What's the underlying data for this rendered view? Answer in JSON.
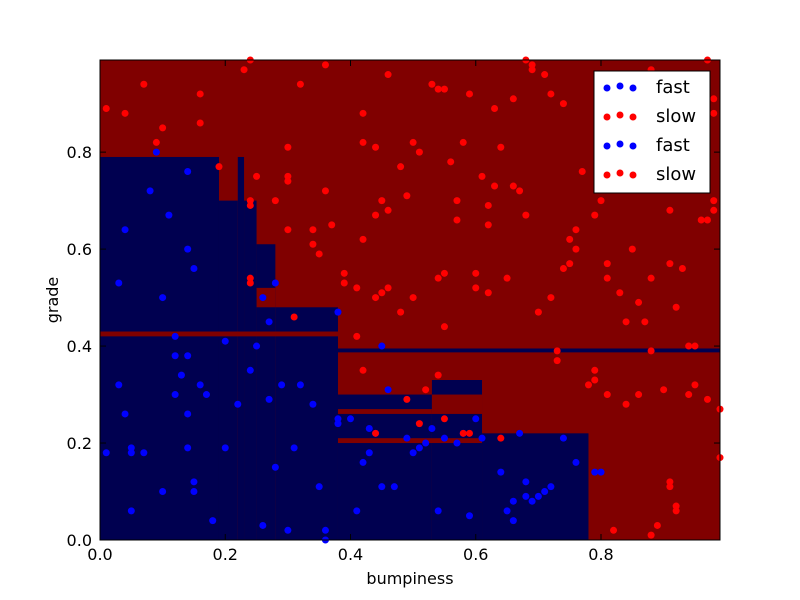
{
  "chart_data": {
    "type": "scatter",
    "title": "",
    "xlabel": "bumpiness",
    "ylabel": "grade",
    "xlim": [
      0.0,
      0.99
    ],
    "ylim": [
      0.0,
      0.99
    ],
    "x_ticks": [
      0.0,
      0.2,
      0.4,
      0.6,
      0.8
    ],
    "x_tick_labels": [
      "0.0",
      "0.2",
      "0.4",
      "0.6",
      "0.8"
    ],
    "y_ticks": [
      0.0,
      0.2,
      0.4,
      0.6,
      0.8
    ],
    "y_tick_labels": [
      "0.0",
      "0.2",
      "0.4",
      "0.6",
      "0.8"
    ],
    "grid": false,
    "legend_position": "top-right",
    "colors": {
      "fast_region": "#000050",
      "slow_region": "#800000",
      "fast_points": "#0000ff",
      "slow_points": "#ff0000",
      "frame": "#000000"
    },
    "legend": [
      {
        "label": "fast",
        "color": "#0000ff"
      },
      {
        "label": "slow",
        "color": "#ff0000"
      },
      {
        "label": "fast",
        "color": "#0000ff"
      },
      {
        "label": "slow",
        "color": "#ff0000"
      }
    ],
    "decision_regions": {
      "background_class": "slow",
      "fast_rectangles": [
        {
          "x0": 0.0,
          "x1": 0.19,
          "y0": 0.0,
          "y1": 0.79
        },
        {
          "x0": 0.19,
          "x1": 0.22,
          "y0": 0.0,
          "y1": 0.7
        },
        {
          "x0": 0.22,
          "x1": 0.23,
          "y0": 0.0,
          "y1": 0.79
        },
        {
          "x0": 0.23,
          "x1": 0.25,
          "y0": 0.0,
          "y1": 0.7
        },
        {
          "x0": 0.25,
          "x1": 0.28,
          "y0": 0.0,
          "y1": 0.61
        },
        {
          "x0": 0.28,
          "x1": 0.38,
          "y0": 0.0,
          "y1": 0.48
        },
        {
          "x0": 0.38,
          "x1": 0.99,
          "y0": 0.387,
          "y1": 0.395
        },
        {
          "x0": 0.38,
          "x1": 0.53,
          "y0": 0.0,
          "y1": 0.3
        },
        {
          "x0": 0.53,
          "x1": 0.61,
          "y0": 0.0,
          "y1": 0.33
        },
        {
          "x0": 0.61,
          "x1": 0.78,
          "y0": 0.0,
          "y1": 0.22
        }
      ],
      "slow_rectangles": [
        {
          "x0": 0.25,
          "x1": 0.28,
          "y0": 0.48,
          "y1": 0.52
        },
        {
          "x0": 0.0,
          "x1": 0.38,
          "y0": 0.42,
          "y1": 0.43
        },
        {
          "x0": 0.38,
          "x1": 0.53,
          "y0": 0.26,
          "y1": 0.27
        },
        {
          "x0": 0.53,
          "x1": 0.61,
          "y0": 0.26,
          "y1": 0.3
        },
        {
          "x0": 0.38,
          "x1": 0.61,
          "y0": 0.2,
          "y1": 0.21
        }
      ]
    },
    "series": [
      {
        "name": "fast",
        "color": "#0000ff",
        "points": [
          [
            0.01,
            0.18
          ],
          [
            0.03,
            0.53
          ],
          [
            0.03,
            0.32
          ],
          [
            0.04,
            0.26
          ],
          [
            0.04,
            0.64
          ],
          [
            0.05,
            0.18
          ],
          [
            0.05,
            0.06
          ],
          [
            0.07,
            0.18
          ],
          [
            0.08,
            0.72
          ],
          [
            0.09,
            0.8
          ],
          [
            0.1,
            0.5
          ],
          [
            0.1,
            0.1
          ],
          [
            0.11,
            0.67
          ],
          [
            0.12,
            0.42
          ],
          [
            0.12,
            0.38
          ],
          [
            0.12,
            0.3
          ],
          [
            0.13,
            0.34
          ],
          [
            0.14,
            0.6
          ],
          [
            0.14,
            0.38
          ],
          [
            0.14,
            0.76
          ],
          [
            0.14,
            0.26
          ],
          [
            0.14,
            0.19
          ],
          [
            0.15,
            0.12
          ],
          [
            0.15,
            0.1
          ],
          [
            0.15,
            0.56
          ],
          [
            0.16,
            0.32
          ],
          [
            0.17,
            0.3
          ],
          [
            0.18,
            0.04
          ],
          [
            0.2,
            0.41
          ],
          [
            0.2,
            0.19
          ],
          [
            0.22,
            0.28
          ],
          [
            0.24,
            0.35
          ],
          [
            0.25,
            0.4
          ],
          [
            0.26,
            0.5
          ],
          [
            0.26,
            0.03
          ],
          [
            0.27,
            0.29
          ],
          [
            0.27,
            0.45
          ],
          [
            0.28,
            0.53
          ],
          [
            0.28,
            0.15
          ],
          [
            0.29,
            0.32
          ],
          [
            0.3,
            0.02
          ],
          [
            0.31,
            0.19
          ],
          [
            0.32,
            0.32
          ],
          [
            0.34,
            0.28
          ],
          [
            0.35,
            0.11
          ],
          [
            0.36,
            0.0
          ],
          [
            0.38,
            0.47
          ],
          [
            0.38,
            0.25
          ],
          [
            0.38,
            0.24
          ],
          [
            0.4,
            0.25
          ],
          [
            0.41,
            0.06
          ],
          [
            0.42,
            0.16
          ],
          [
            0.43,
            0.23
          ],
          [
            0.43,
            0.18
          ],
          [
            0.44,
            0.22
          ],
          [
            0.45,
            0.4
          ],
          [
            0.46,
            0.31
          ],
          [
            0.47,
            0.11
          ],
          [
            0.49,
            0.21
          ],
          [
            0.5,
            0.18
          ],
          [
            0.51,
            0.19
          ],
          [
            0.52,
            0.2
          ],
          [
            0.53,
            0.23
          ],
          [
            0.54,
            0.06
          ],
          [
            0.55,
            0.21
          ],
          [
            0.57,
            0.2
          ],
          [
            0.58,
            0.22
          ],
          [
            0.59,
            0.05
          ],
          [
            0.6,
            0.25
          ],
          [
            0.61,
            0.21
          ],
          [
            0.64,
            0.14
          ],
          [
            0.65,
            0.06
          ],
          [
            0.66,
            0.08
          ],
          [
            0.66,
            0.04
          ],
          [
            0.67,
            0.22
          ],
          [
            0.68,
            0.12
          ],
          [
            0.68,
            0.09
          ],
          [
            0.69,
            0.08
          ],
          [
            0.7,
            0.09
          ],
          [
            0.71,
            0.1
          ],
          [
            0.72,
            0.11
          ],
          [
            0.74,
            0.21
          ],
          [
            0.76,
            0.16
          ],
          [
            0.79,
            0.14
          ],
          [
            0.8,
            0.14
          ],
          [
            0.36,
            0.02
          ],
          [
            0.05,
            0.19
          ],
          [
            0.45,
            0.11
          ]
        ]
      },
      {
        "name": "slow",
        "color": "#ff0000",
        "points": [
          [
            0.01,
            0.89
          ],
          [
            0.04,
            0.88
          ],
          [
            0.07,
            0.94
          ],
          [
            0.09,
            0.82
          ],
          [
            0.1,
            0.85
          ],
          [
            0.16,
            0.92
          ],
          [
            0.16,
            0.86
          ],
          [
            0.19,
            0.77
          ],
          [
            0.23,
            0.97
          ],
          [
            0.24,
            0.7
          ],
          [
            0.24,
            0.69
          ],
          [
            0.24,
            0.54
          ],
          [
            0.24,
            0.53
          ],
          [
            0.25,
            0.75
          ],
          [
            0.28,
            0.7
          ],
          [
            0.3,
            0.81
          ],
          [
            0.3,
            0.75
          ],
          [
            0.3,
            0.74
          ],
          [
            0.3,
            0.64
          ],
          [
            0.31,
            0.46
          ],
          [
            0.32,
            0.94
          ],
          [
            0.34,
            0.64
          ],
          [
            0.34,
            0.61
          ],
          [
            0.35,
            0.59
          ],
          [
            0.36,
            0.72
          ],
          [
            0.37,
            0.65
          ],
          [
            0.39,
            0.55
          ],
          [
            0.39,
            0.53
          ],
          [
            0.41,
            0.52
          ],
          [
            0.41,
            0.42
          ],
          [
            0.42,
            0.82
          ],
          [
            0.42,
            0.88
          ],
          [
            0.42,
            0.62
          ],
          [
            0.42,
            0.35
          ],
          [
            0.44,
            0.81
          ],
          [
            0.44,
            0.67
          ],
          [
            0.44,
            0.5
          ],
          [
            0.45,
            0.7
          ],
          [
            0.45,
            0.51
          ],
          [
            0.46,
            0.96
          ],
          [
            0.46,
            0.68
          ],
          [
            0.46,
            0.52
          ],
          [
            0.48,
            0.77
          ],
          [
            0.48,
            0.47
          ],
          [
            0.49,
            0.71
          ],
          [
            0.49,
            0.29
          ],
          [
            0.5,
            0.82
          ],
          [
            0.5,
            0.5
          ],
          [
            0.51,
            0.8
          ],
          [
            0.51,
            0.24
          ],
          [
            0.52,
            0.31
          ],
          [
            0.53,
            0.94
          ],
          [
            0.54,
            0.93
          ],
          [
            0.54,
            0.54
          ],
          [
            0.54,
            0.34
          ],
          [
            0.55,
            0.93
          ],
          [
            0.55,
            0.55
          ],
          [
            0.55,
            0.44
          ],
          [
            0.55,
            0.25
          ],
          [
            0.56,
            0.78
          ],
          [
            0.57,
            0.7
          ],
          [
            0.57,
            0.66
          ],
          [
            0.58,
            0.22
          ],
          [
            0.59,
            0.92
          ],
          [
            0.59,
            0.22
          ],
          [
            0.6,
            0.55
          ],
          [
            0.6,
            0.52
          ],
          [
            0.61,
            0.75
          ],
          [
            0.62,
            0.65
          ],
          [
            0.62,
            0.69
          ],
          [
            0.62,
            0.51
          ],
          [
            0.63,
            0.89
          ],
          [
            0.63,
            0.73
          ],
          [
            0.64,
            0.81
          ],
          [
            0.64,
            0.21
          ],
          [
            0.65,
            0.54
          ],
          [
            0.66,
            0.91
          ],
          [
            0.66,
            0.73
          ],
          [
            0.67,
            0.72
          ],
          [
            0.68,
            0.67
          ],
          [
            0.69,
            0.97
          ],
          [
            0.69,
            0.98
          ],
          [
            0.7,
            0.47
          ],
          [
            0.71,
            0.96
          ],
          [
            0.72,
            0.92
          ],
          [
            0.72,
            0.5
          ],
          [
            0.73,
            0.37
          ],
          [
            0.73,
            0.39
          ],
          [
            0.74,
            0.9
          ],
          [
            0.74,
            0.56
          ],
          [
            0.75,
            0.57
          ],
          [
            0.75,
            0.62
          ],
          [
            0.76,
            0.64
          ],
          [
            0.76,
            0.6
          ],
          [
            0.77,
            0.76
          ],
          [
            0.78,
            0.32
          ],
          [
            0.79,
            0.35
          ],
          [
            0.79,
            0.33
          ],
          [
            0.79,
            0.67
          ],
          [
            0.8,
            0.7
          ],
          [
            0.81,
            0.57
          ],
          [
            0.81,
            0.54
          ],
          [
            0.81,
            0.3
          ],
          [
            0.82,
            0.02
          ],
          [
            0.83,
            0.51
          ],
          [
            0.84,
            0.45
          ],
          [
            0.84,
            0.28
          ],
          [
            0.85,
            0.6
          ],
          [
            0.86,
            0.49
          ],
          [
            0.86,
            0.3
          ],
          [
            0.87,
            0.45
          ],
          [
            0.88,
            0.39
          ],
          [
            0.88,
            0.54
          ],
          [
            0.88,
            0.01
          ],
          [
            0.89,
            0.03
          ],
          [
            0.9,
            0.31
          ],
          [
            0.91,
            0.57
          ],
          [
            0.91,
            0.68
          ],
          [
            0.91,
            0.11
          ],
          [
            0.91,
            0.12
          ],
          [
            0.92,
            0.07
          ],
          [
            0.92,
            0.06
          ],
          [
            0.92,
            0.48
          ],
          [
            0.93,
            0.56
          ],
          [
            0.94,
            0.3
          ],
          [
            0.94,
            0.4
          ],
          [
            0.95,
            0.32
          ],
          [
            0.96,
            0.66
          ],
          [
            0.97,
            0.66
          ],
          [
            0.97,
            0.29
          ],
          [
            0.98,
            0.7
          ],
          [
            0.98,
            0.68
          ],
          [
            0.98,
            0.91
          ],
          [
            0.98,
            0.88
          ],
          [
            0.99,
            0.27
          ],
          [
            0.99,
            0.17
          ],
          [
            0.97,
            0.99
          ],
          [
            0.88,
            0.97
          ],
          [
            0.68,
            0.99
          ],
          [
            0.58,
            0.82
          ],
          [
            0.36,
            0.98
          ],
          [
            0.24,
            0.99
          ],
          [
            0.44,
            0.22
          ],
          [
            0.95,
            0.4
          ]
        ]
      }
    ]
  }
}
